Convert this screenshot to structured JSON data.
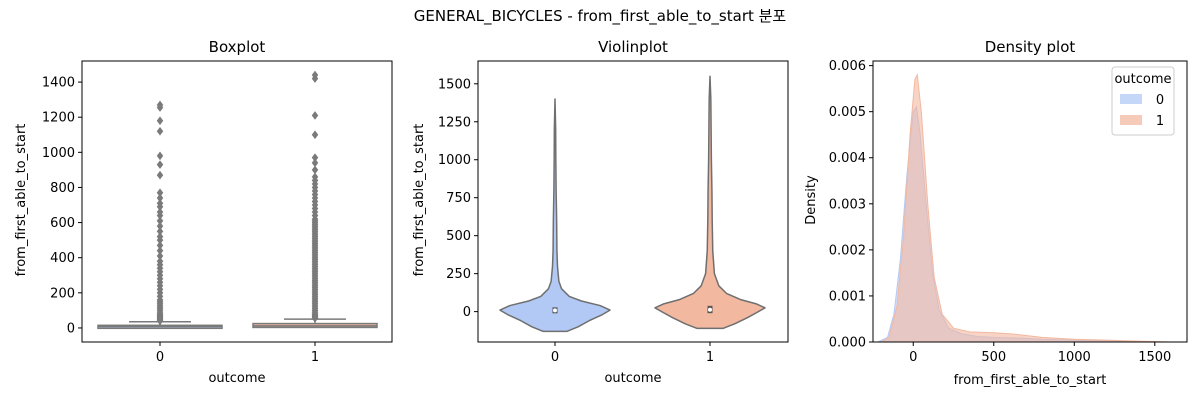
{
  "suptitle": "GENERAL_BICYCLES - from_first_able_to_start 분포",
  "colors": {
    "outcome_0": "#b2c9f5",
    "outcome_1": "#f3b8a0",
    "box_line": "#7a7a7a",
    "outlier": "#7a7a7a"
  },
  "chart_data": [
    {
      "type": "box",
      "title": "Boxplot",
      "xlabel": "outcome",
      "ylabel": "from_first_able_to_start",
      "categories": [
        "0",
        "1"
      ],
      "ylim": [
        -80,
        1520
      ],
      "yticks": [
        0,
        200,
        400,
        600,
        800,
        1000,
        1200,
        1400
      ],
      "series": [
        {
          "category": "0",
          "q1": 2,
          "median": 8,
          "q3": 15,
          "whisker_low": 0,
          "whisker_high": 35,
          "outliers": [
            40,
            45,
            50,
            55,
            60,
            65,
            70,
            75,
            80,
            90,
            100,
            110,
            120,
            130,
            140,
            150,
            160,
            180,
            200,
            220,
            240,
            260,
            280,
            300,
            320,
            340,
            360,
            380,
            410,
            440,
            470,
            500,
            520,
            550,
            580,
            610,
            640,
            660,
            690,
            710,
            740,
            770,
            870,
            930,
            980,
            1120,
            1180,
            1255,
            1270
          ]
        },
        {
          "category": "1",
          "q1": 3,
          "median": 12,
          "q3": 25,
          "whisker_low": 0,
          "whisker_high": 50,
          "outliers": [
            55,
            60,
            65,
            70,
            75,
            80,
            90,
            100,
            110,
            120,
            130,
            140,
            150,
            160,
            170,
            180,
            190,
            200,
            210,
            220,
            230,
            240,
            250,
            260,
            270,
            280,
            290,
            300,
            310,
            320,
            330,
            340,
            350,
            360,
            370,
            380,
            390,
            400,
            410,
            420,
            430,
            440,
            450,
            460,
            470,
            480,
            490,
            500,
            510,
            520,
            530,
            540,
            550,
            560,
            570,
            580,
            590,
            600,
            610,
            620,
            640,
            660,
            680,
            700,
            720,
            740,
            760,
            780,
            800,
            820,
            840,
            860,
            900,
            940,
            970,
            1100,
            1210,
            1420,
            1440
          ]
        }
      ]
    },
    {
      "type": "violin",
      "title": "Violinplot",
      "xlabel": "outcome",
      "ylabel": "from_first_able_to_start",
      "categories": [
        "0",
        "1"
      ],
      "ylim": [
        -200,
        1650
      ],
      "yticks": [
        0,
        250,
        500,
        750,
        1000,
        1250,
        1500
      ],
      "series": [
        {
          "category": "0",
          "min": -130,
          "max": 1400,
          "q1": 2,
          "median": 8,
          "q3": 15,
          "profile": [
            [
              -130,
              0.22
            ],
            [
              -100,
              0.42
            ],
            [
              -60,
              0.62
            ],
            [
              -20,
              0.86
            ],
            [
              10,
              1.0
            ],
            [
              40,
              0.82
            ],
            [
              70,
              0.48
            ],
            [
              100,
              0.26
            ],
            [
              150,
              0.12
            ],
            [
              200,
              0.07
            ],
            [
              300,
              0.045
            ],
            [
              400,
              0.035
            ],
            [
              600,
              0.03
            ],
            [
              700,
              0.025
            ],
            [
              800,
              0.02
            ],
            [
              1000,
              0.015
            ],
            [
              1200,
              0.012
            ],
            [
              1400,
              0.0
            ]
          ]
        },
        {
          "category": "1",
          "min": -110,
          "max": 1550,
          "q1": 3,
          "median": 12,
          "q3": 25,
          "profile": [
            [
              -110,
              0.24
            ],
            [
              -80,
              0.45
            ],
            [
              -40,
              0.68
            ],
            [
              0,
              0.88
            ],
            [
              25,
              1.0
            ],
            [
              50,
              0.85
            ],
            [
              80,
              0.55
            ],
            [
              120,
              0.3
            ],
            [
              170,
              0.16
            ],
            [
              250,
              0.08
            ],
            [
              400,
              0.05
            ],
            [
              600,
              0.04
            ],
            [
              800,
              0.035
            ],
            [
              1000,
              0.025
            ],
            [
              1200,
              0.02
            ],
            [
              1400,
              0.015
            ],
            [
              1550,
              0.0
            ]
          ]
        }
      ]
    },
    {
      "type": "area",
      "title": "Density plot",
      "xlabel": "from_first_able_to_start",
      "ylabel": "Density",
      "xlim": [
        -250,
        1700
      ],
      "ylim": [
        0,
        0.0061
      ],
      "xticks": [
        0,
        500,
        1000,
        1500
      ],
      "yticks": [
        0.0,
        0.001,
        0.002,
        0.003,
        0.004,
        0.005,
        0.006
      ],
      "ytick_labels": [
        "0.000",
        "0.001",
        "0.002",
        "0.003",
        "0.004",
        "0.005",
        "0.006"
      ],
      "legend": {
        "title": "outcome",
        "placement": "top-right",
        "entries": [
          "0",
          "1"
        ]
      },
      "series": [
        {
          "name": "0",
          "points": [
            [
              -220,
              0
            ],
            [
              -160,
              0.0001
            ],
            [
              -120,
              0.0006
            ],
            [
              -80,
              0.0018
            ],
            [
              -40,
              0.0036
            ],
            [
              0,
              0.005
            ],
            [
              20,
              0.0051
            ],
            [
              40,
              0.0046
            ],
            [
              80,
              0.003
            ],
            [
              120,
              0.0015
            ],
            [
              160,
              0.0007
            ],
            [
              220,
              0.0003
            ],
            [
              300,
              0.00018
            ],
            [
              400,
              0.00012
            ],
            [
              500,
              0.0001
            ],
            [
              600,
              9e-05
            ],
            [
              700,
              8e-05
            ],
            [
              800,
              6e-05
            ],
            [
              1000,
              4e-05
            ],
            [
              1200,
              3e-05
            ],
            [
              1300,
              1e-05
            ],
            [
              1400,
              0
            ]
          ]
        },
        {
          "name": "1",
          "points": [
            [
              -200,
              0
            ],
            [
              -150,
              0.0001
            ],
            [
              -100,
              0.0008
            ],
            [
              -60,
              0.0023
            ],
            [
              -20,
              0.0045
            ],
            [
              10,
              0.0057
            ],
            [
              25,
              0.0058
            ],
            [
              50,
              0.005
            ],
            [
              90,
              0.003
            ],
            [
              130,
              0.0014
            ],
            [
              180,
              0.0006
            ],
            [
              250,
              0.0003
            ],
            [
              350,
              0.00022
            ],
            [
              500,
              0.0002
            ],
            [
              600,
              0.00018
            ],
            [
              700,
              0.00014
            ],
            [
              800,
              0.0001
            ],
            [
              1000,
              6e-05
            ],
            [
              1200,
              4e-05
            ],
            [
              1400,
              2e-05
            ],
            [
              1600,
              0
            ]
          ]
        }
      ]
    }
  ]
}
